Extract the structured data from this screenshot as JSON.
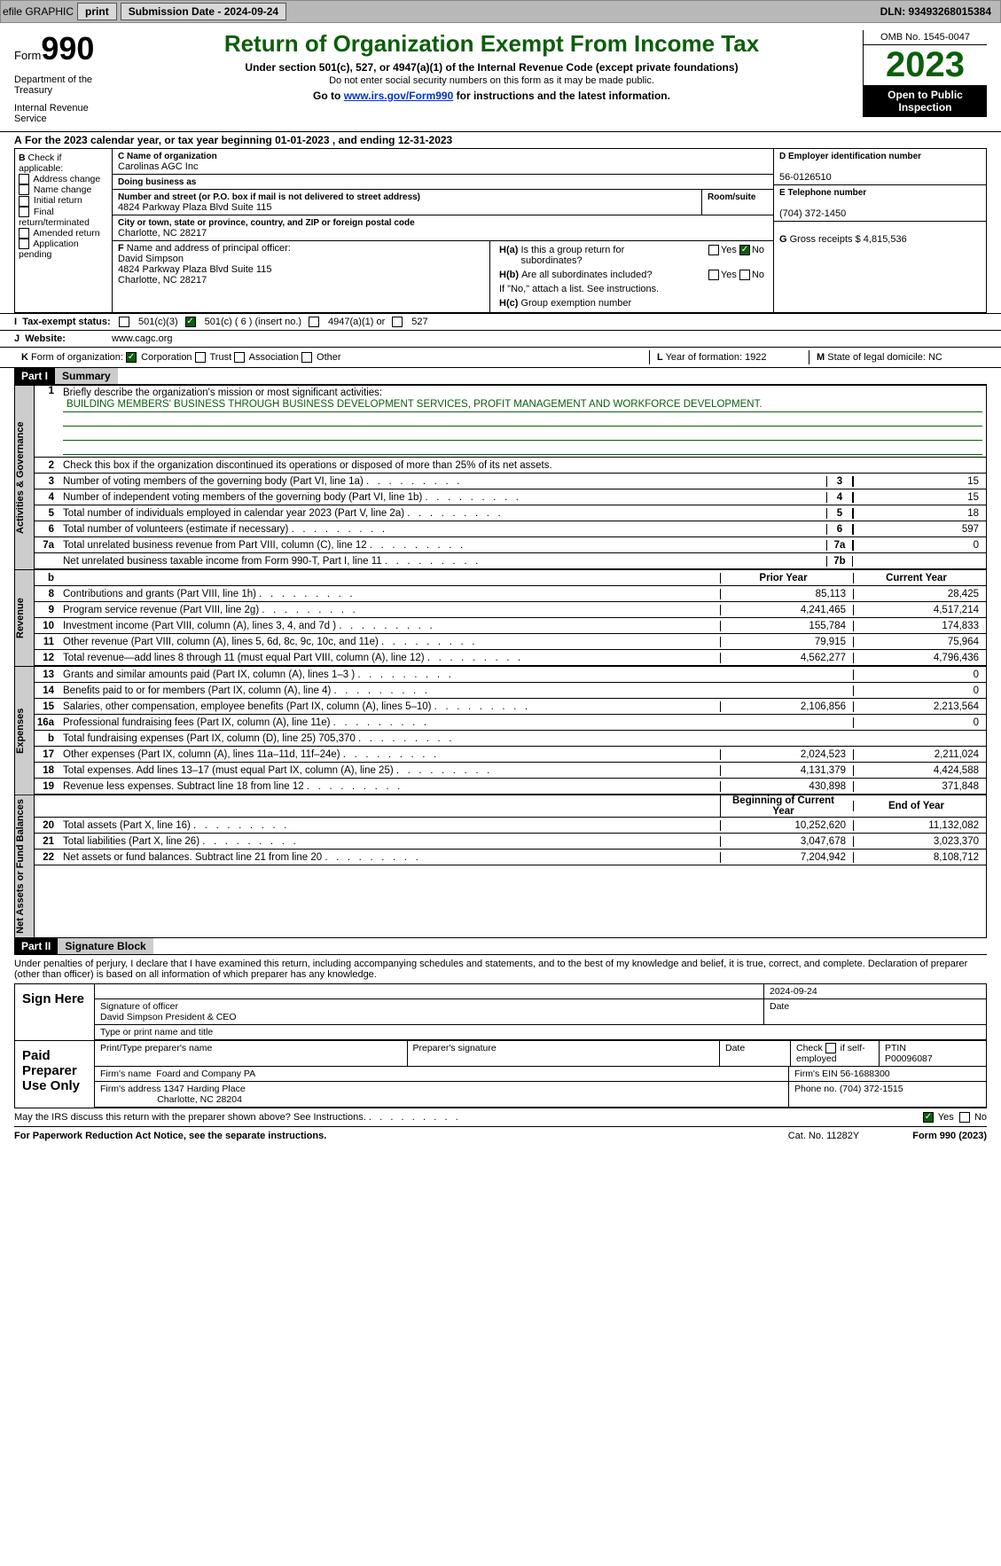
{
  "toolbar": {
    "efile": "efile GRAPHIC",
    "print": "print",
    "sub_label": "Submission Date - 2024-09-24",
    "dln": "DLN: 93493268015384"
  },
  "header": {
    "form_word": "Form",
    "form_no": "990",
    "title": "Return of Organization Exempt From Income Tax",
    "subtitle": "Under section 501(c), 527, or 4947(a)(1) of the Internal Revenue Code (except private foundations)",
    "ssn": "Do not enter social security numbers on this form as it may be made public.",
    "inst_pre": "Go to ",
    "inst_link": "www.irs.gov/Form990",
    "inst_post": " for instructions and the latest information.",
    "dept": "Department of the Treasury",
    "irs": "Internal Revenue Service",
    "omb": "OMB No. 1545-0047",
    "year": "2023",
    "open": "Open to Public Inspection"
  },
  "a_line": "For the 2023 calendar year, or tax year beginning 01-01-2023    , and ending 12-31-2023",
  "box_b": {
    "title": "B",
    "label": "Check if applicable:",
    "items": [
      "Address change",
      "Name change",
      "Initial return",
      "Final return/terminated",
      "Amended return",
      "Application pending"
    ]
  },
  "box_c": {
    "name_lbl": "C Name of organization",
    "name": "Carolinas AGC Inc",
    "dba_lbl": "Doing business as",
    "dba": "",
    "addr_lbl": "Number and street (or P.O. box if mail is not delivered to street address)",
    "room_lbl": "Room/suite",
    "addr": "4824 Parkway Plaza Blvd Suite 115",
    "city_lbl": "City or town, state or province, country, and ZIP or foreign postal code",
    "city": "Charlotte, NC  28217"
  },
  "box_d": {
    "lbl": "D Employer identification number",
    "val": "56-0126510"
  },
  "box_e": {
    "lbl": "E Telephone number",
    "val": "(704) 372-1450"
  },
  "box_g": {
    "lbl": "G",
    "txt": "Gross receipts $",
    "val": "4,815,536"
  },
  "box_f": {
    "lbl": "F",
    "txt": "Name and address of principal officer:",
    "name": "David Simpson",
    "addr1": "4824 Parkway Plaza Blvd Suite 115",
    "addr2": "Charlotte, NC  28217"
  },
  "box_h": {
    "ha": "H(a)",
    "ha_txt": "Is this a group return for subordinates?",
    "hb": "H(b)",
    "hb_txt": "Are all subordinates included?",
    "hb_note": "If \"No,\" attach a list. See instructions.",
    "hc": "H(c)",
    "hc_txt": "Group exemption number",
    "yes": "Yes",
    "no": "No"
  },
  "tax_exempt": {
    "i": "I",
    "lbl": "Tax-exempt status:",
    "o1": "501(c)(3)",
    "o2": "501(c) ( 6 ) (insert no.)",
    "o3": "4947(a)(1) or",
    "o4": "527"
  },
  "website": {
    "j": "J",
    "lbl": "Website:",
    "val": "www.cagc.org"
  },
  "k": {
    "lbl": "K",
    "txt": "Form of organization:",
    "o1": "Corporation",
    "o2": "Trust",
    "o3": "Association",
    "o4": "Other"
  },
  "l": {
    "lbl": "L",
    "txt": "Year of formation: 1922"
  },
  "m": {
    "lbl": "M",
    "txt": "State of legal domicile: NC"
  },
  "part1": {
    "hdr": "Part I",
    "title": "Summary"
  },
  "s1": {
    "n": "1",
    "t": "Briefly describe the organization's mission or most significant activities:",
    "mission": "BUILDING MEMBERS' BUSINESS THROUGH BUSINESS DEVELOPMENT SERVICES, PROFIT MANAGEMENT AND WORKFORCE DEVELOPMENT."
  },
  "s2": {
    "n": "2",
    "t": "Check this box      if the organization discontinued its operations or disposed of more than 25% of its net assets."
  },
  "lines_gov": [
    {
      "n": "3",
      "t": "Number of voting members of the governing body (Part VI, line 1a)",
      "bn": "3",
      "v": "15"
    },
    {
      "n": "4",
      "t": "Number of independent voting members of the governing body (Part VI, line 1b)",
      "bn": "4",
      "v": "15"
    },
    {
      "n": "5",
      "t": "Total number of individuals employed in calendar year 2023 (Part V, line 2a)",
      "bn": "5",
      "v": "18"
    },
    {
      "n": "6",
      "t": "Total number of volunteers (estimate if necessary)",
      "bn": "6",
      "v": "597"
    },
    {
      "n": "7a",
      "t": "Total unrelated business revenue from Part VIII, column (C), line 12",
      "bn": "7a",
      "v": "0"
    },
    {
      "n": "",
      "t": "Net unrelated business taxable income from Form 990-T, Part I, line 11",
      "bn": "7b",
      "v": ""
    }
  ],
  "col_hdr": {
    "b": "b",
    "py": "Prior Year",
    "cy": "Current Year"
  },
  "lines_rev": [
    {
      "n": "8",
      "t": "Contributions and grants (Part VIII, line 1h)",
      "py": "85,113",
      "cy": "28,425"
    },
    {
      "n": "9",
      "t": "Program service revenue (Part VIII, line 2g)",
      "py": "4,241,465",
      "cy": "4,517,214"
    },
    {
      "n": "10",
      "t": "Investment income (Part VIII, column (A), lines 3, 4, and 7d )",
      "py": "155,784",
      "cy": "174,833"
    },
    {
      "n": "11",
      "t": "Other revenue (Part VIII, column (A), lines 5, 6d, 8c, 9c, 10c, and 11e)",
      "py": "79,915",
      "cy": "75,964"
    },
    {
      "n": "12",
      "t": "Total revenue—add lines 8 through 11 (must equal Part VIII, column (A), line 12)",
      "py": "4,562,277",
      "cy": "4,796,436"
    }
  ],
  "lines_exp": [
    {
      "n": "13",
      "t": "Grants and similar amounts paid (Part IX, column (A), lines 1–3 )",
      "py": "",
      "cy": "0"
    },
    {
      "n": "14",
      "t": "Benefits paid to or for members (Part IX, column (A), line 4)",
      "py": "",
      "cy": "0"
    },
    {
      "n": "15",
      "t": "Salaries, other compensation, employee benefits (Part IX, column (A), lines 5–10)",
      "py": "2,106,856",
      "cy": "2,213,564"
    },
    {
      "n": "16a",
      "t": "Professional fundraising fees (Part IX, column (A), line 11e)",
      "py": "",
      "cy": "0"
    },
    {
      "n": "b",
      "t": "Total fundraising expenses (Part IX, column (D), line 25) 705,370",
      "py": "grey",
      "cy": "grey"
    },
    {
      "n": "17",
      "t": "Other expenses (Part IX, column (A), lines 11a–11d, 11f–24e)",
      "py": "2,024,523",
      "cy": "2,211,024"
    },
    {
      "n": "18",
      "t": "Total expenses. Add lines 13–17 (must equal Part IX, column (A), line 25)",
      "py": "4,131,379",
      "cy": "4,424,588"
    },
    {
      "n": "19",
      "t": "Revenue less expenses. Subtract line 18 from line 12",
      "py": "430,898",
      "cy": "371,848"
    }
  ],
  "col_hdr2": {
    "py": "Beginning of Current Year",
    "cy": "End of Year"
  },
  "lines_net": [
    {
      "n": "20",
      "t": "Total assets (Part X, line 16)",
      "py": "10,252,620",
      "cy": "11,132,082"
    },
    {
      "n": "21",
      "t": "Total liabilities (Part X, line 26)",
      "py": "3,047,678",
      "cy": "3,023,370"
    },
    {
      "n": "22",
      "t": "Net assets or fund balances. Subtract line 21 from line 20",
      "py": "7,204,942",
      "cy": "8,108,712"
    }
  ],
  "vtabs": {
    "gov": "Activities & Governance",
    "rev": "Revenue",
    "exp": "Expenses",
    "net": "Net Assets or Fund Balances"
  },
  "part2": {
    "hdr": "Part II",
    "title": "Signature Block"
  },
  "sig_decl": "Under penalties of perjury, I declare that I have examined this return, including accompanying schedules and statements, and to the best of my knowledge and belief, it is true, correct, and complete. Declaration of preparer (other than officer) is based on all information of which preparer has any knowledge.",
  "sign_here": {
    "lbl": "Sign Here",
    "date": "2024-09-24",
    "sig_lbl": "Signature of officer",
    "officer": "David Simpson  President & CEO",
    "type_lbl": "Type or print name and title",
    "date_lbl": "Date"
  },
  "paid": {
    "lbl": "Paid Preparer Use Only",
    "p_name_lbl": "Print/Type preparer's name",
    "p_sig_lbl": "Preparer's signature",
    "date_lbl": "Date",
    "check_lbl": "Check",
    "self_lbl": "if self-employed",
    "ptin_lbl": "PTIN",
    "ptin": "P00096087",
    "firm_name_lbl": "Firm's name",
    "firm_name": "Foard and Company PA",
    "firm_ein_lbl": "Firm's EIN",
    "firm_ein": "56-1688300",
    "firm_addr_lbl": "Firm's address",
    "firm_addr1": "1347 Harding Place",
    "firm_addr2": "Charlotte, NC  28204",
    "phone_lbl": "Phone no.",
    "phone": "(704) 372-1515"
  },
  "discuss": "May the IRS discuss this return with the preparer shown above? See Instructions.",
  "footer": {
    "pra": "For Paperwork Reduction Act Notice, see the separate instructions.",
    "cat": "Cat. No. 11282Y",
    "form": "Form 990 (2023)"
  }
}
